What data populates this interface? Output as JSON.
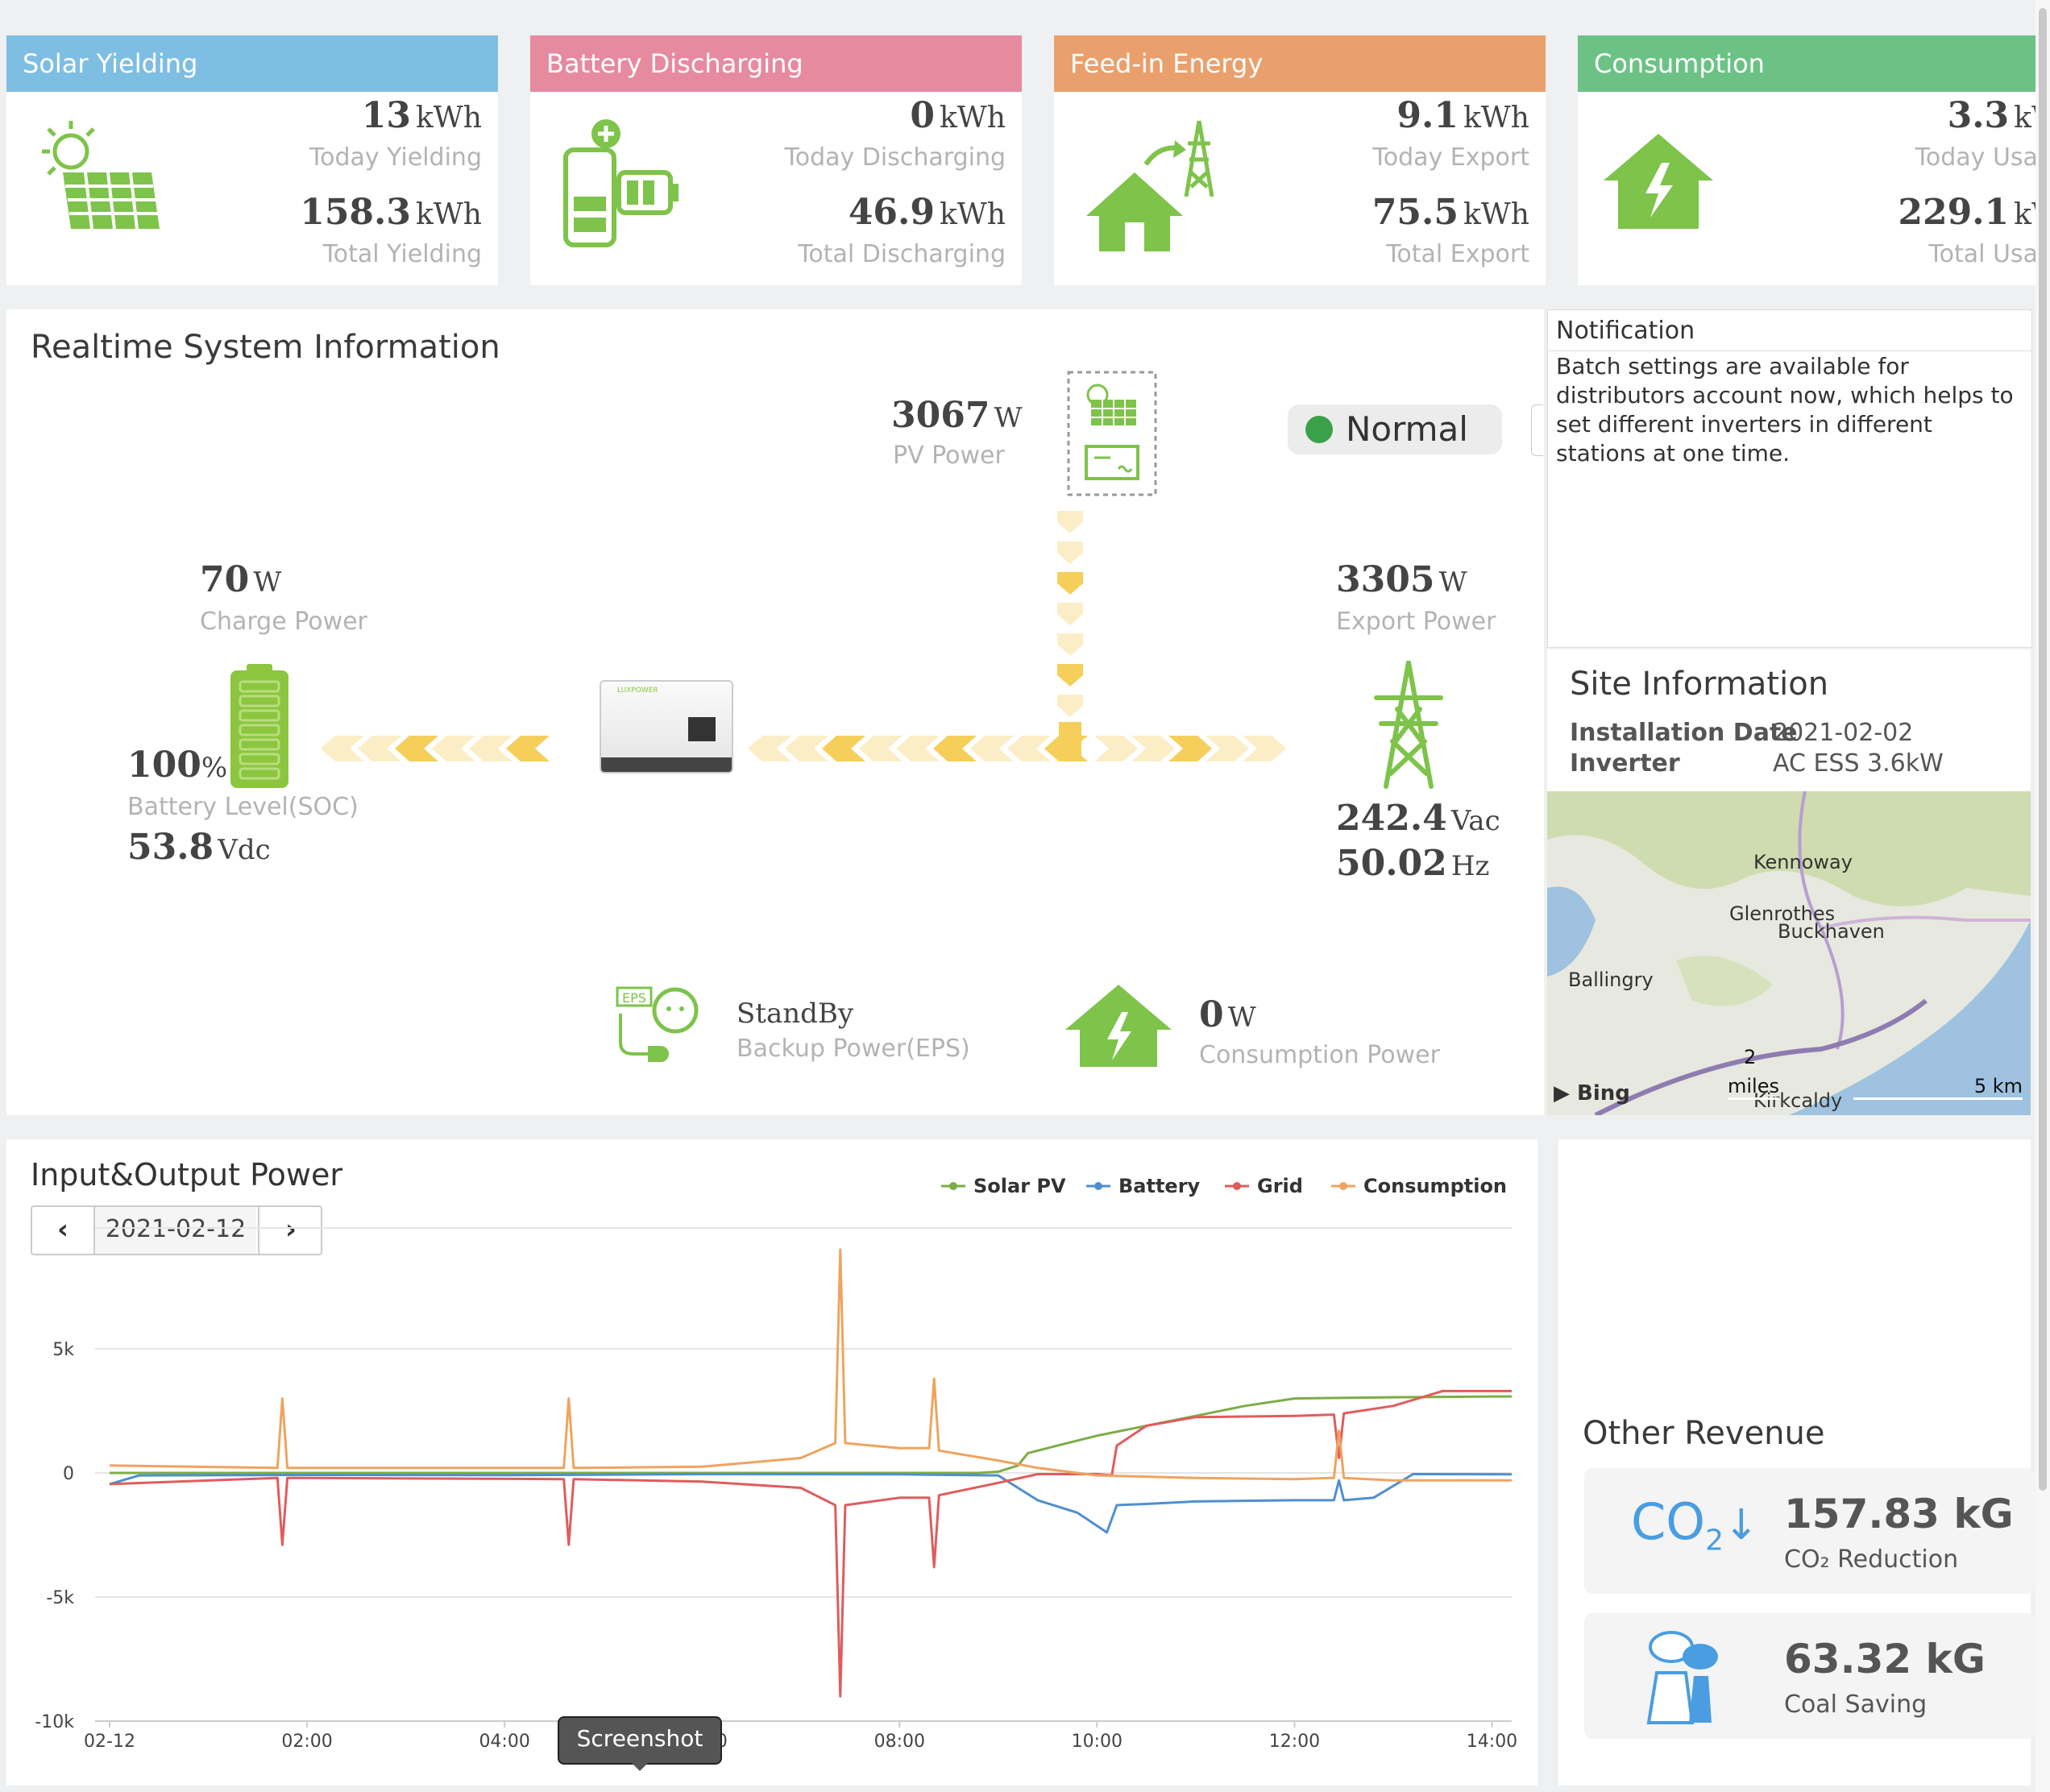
{
  "cards": [
    {
      "title": "Solar Yielding",
      "color": "#7fbee3",
      "today_value": "13",
      "today_unit": "kWh",
      "today_label": "Today Yielding",
      "total_value": "158.3",
      "total_unit": "kWh",
      "total_label": "Total Yielding",
      "icon": "solar-panel-icon"
    },
    {
      "title": "Battery Discharging",
      "color": "#e68aa0",
      "today_value": "0",
      "today_unit": "kWh",
      "today_label": "Today Discharging",
      "total_value": "46.9",
      "total_unit": "kWh",
      "total_label": "Total Discharging",
      "icon": "battery-icon"
    },
    {
      "title": "Feed-in Energy",
      "color": "#e9a06c",
      "today_value": "9.1",
      "today_unit": "kWh",
      "today_label": "Today Export",
      "total_value": "75.5",
      "total_unit": "kWh",
      "total_label": "Total Export",
      "icon": "house-grid-icon"
    },
    {
      "title": "Consumption",
      "color": "#6cc285",
      "today_value": "3.3",
      "today_unit": "kW",
      "today_label": "Today Usag",
      "total_value": "229.1",
      "total_unit": "kW",
      "total_label": "Total Usag",
      "icon": "house-bolt-icon"
    }
  ],
  "realtime": {
    "title": "Realtime System Information",
    "status": "Normal",
    "status_color": "#3aa14a",
    "pv_power": "3067",
    "pv_power_unit": "W",
    "pv_power_label": "PV Power",
    "charge_power": "70",
    "charge_power_unit": "W",
    "charge_power_label": "Charge Power",
    "soc": "100",
    "soc_unit": "%",
    "soc_label": "Battery Level(SOC)",
    "battery_voltage": "53.8",
    "battery_voltage_unit": "Vdc",
    "export_power": "3305",
    "export_power_unit": "W",
    "export_power_label": "Export Power",
    "grid_voltage": "242.4",
    "grid_voltage_unit": "Vac",
    "grid_freq": "50.02",
    "grid_freq_unit": "Hz",
    "eps_status": "StandBy",
    "eps_label": "Backup Power(EPS)",
    "consumption_power": "0",
    "consumption_power_unit": "W",
    "consumption_label": "Consumption Power",
    "inverter_brand": "LUXPOWER",
    "eps_tag": "EPS"
  },
  "notification": {
    "title": "Notification",
    "text": "Batch settings are available for distributors account now, which helps to set different inverters in different stations at one time."
  },
  "site": {
    "title": "Site Information",
    "install_label": "Installation Date",
    "install_value": "2021-02-02",
    "inverter_label": "Inverter",
    "inverter_value": "AC ESS 3.6kW",
    "map": {
      "places": [
        "Kennoway",
        "Glenrothes",
        "Buckhaven",
        "Ballingry",
        "Kirkcaldy"
      ],
      "scale_miles_value": "2",
      "scale_miles_unit": "miles",
      "scale_km": "5 km",
      "provider": "Bing"
    }
  },
  "chart_panel": {
    "title": "Input&Output Power",
    "date": "2021-02-12",
    "tooltip": "Screenshot"
  },
  "chart_data": {
    "type": "line",
    "x_ticks": [
      "02-12",
      "02:00",
      "04:00",
      "06:00",
      "08:00",
      "10:00",
      "12:00",
      "14:00"
    ],
    "y_ticks": [
      "5k",
      "0",
      "-5k",
      "-10k"
    ],
    "ylim": [
      -10000,
      10000
    ],
    "xlim_hours": [
      0,
      14.2
    ],
    "legend_position": "top-right",
    "series": [
      {
        "name": "Solar PV",
        "color": "#7cad46",
        "points": [
          [
            0,
            0
          ],
          [
            8.8,
            0
          ],
          [
            9.0,
            50
          ],
          [
            9.2,
            300
          ],
          [
            9.3,
            800
          ],
          [
            9.6,
            1100
          ],
          [
            10.0,
            1500
          ],
          [
            10.5,
            1900
          ],
          [
            11.0,
            2300
          ],
          [
            11.5,
            2700
          ],
          [
            12.0,
            3000
          ],
          [
            13.0,
            3050
          ],
          [
            14.0,
            3080
          ],
          [
            14.2,
            3080
          ]
        ]
      },
      {
        "name": "Battery",
        "color": "#4f8fcf",
        "points": [
          [
            0,
            -450
          ],
          [
            0.3,
            -100
          ],
          [
            2.0,
            -80
          ],
          [
            4.0,
            -90
          ],
          [
            6.0,
            -50
          ],
          [
            8.0,
            -60
          ],
          [
            9.0,
            -100
          ],
          [
            9.4,
            -1100
          ],
          [
            9.8,
            -1600
          ],
          [
            10.1,
            -2400
          ],
          [
            10.2,
            -1300
          ],
          [
            10.5,
            -1250
          ],
          [
            11.0,
            -1150
          ],
          [
            12.0,
            -1100
          ],
          [
            12.4,
            -1100
          ],
          [
            12.45,
            -300
          ],
          [
            12.5,
            -1100
          ],
          [
            12.8,
            -1000
          ],
          [
            13.2,
            -50
          ],
          [
            14.2,
            -60
          ]
        ]
      },
      {
        "name": "Grid",
        "color": "#e05c5c",
        "points": [
          [
            0,
            -450
          ],
          [
            1.7,
            -200
          ],
          [
            1.75,
            -2900
          ],
          [
            1.8,
            -200
          ],
          [
            4.6,
            -250
          ],
          [
            4.65,
            -2900
          ],
          [
            4.7,
            -250
          ],
          [
            6.0,
            -350
          ],
          [
            7.0,
            -600
          ],
          [
            7.35,
            -1300
          ],
          [
            7.4,
            -9000
          ],
          [
            7.45,
            -1300
          ],
          [
            8.0,
            -1000
          ],
          [
            8.3,
            -1000
          ],
          [
            8.35,
            -3800
          ],
          [
            8.4,
            -900
          ],
          [
            9.0,
            -400
          ],
          [
            9.4,
            -50
          ],
          [
            10.0,
            -50
          ],
          [
            10.15,
            -100
          ],
          [
            10.2,
            1100
          ],
          [
            10.5,
            1900
          ],
          [
            11.0,
            2250
          ],
          [
            12.0,
            2300
          ],
          [
            12.4,
            2350
          ],
          [
            12.45,
            600
          ],
          [
            12.5,
            2400
          ],
          [
            13.0,
            2700
          ],
          [
            13.5,
            3300
          ],
          [
            14.2,
            3300
          ]
        ]
      },
      {
        "name": "Consumption",
        "color": "#f0a35e",
        "points": [
          [
            0,
            300
          ],
          [
            1.7,
            200
          ],
          [
            1.75,
            3000
          ],
          [
            1.8,
            200
          ],
          [
            4.6,
            200
          ],
          [
            4.65,
            3000
          ],
          [
            4.7,
            200
          ],
          [
            6.0,
            250
          ],
          [
            7.0,
            600
          ],
          [
            7.35,
            1200
          ],
          [
            7.4,
            9000
          ],
          [
            7.45,
            1200
          ],
          [
            8.0,
            1000
          ],
          [
            8.3,
            1000
          ],
          [
            8.35,
            3800
          ],
          [
            8.4,
            900
          ],
          [
            9.0,
            500
          ],
          [
            9.4,
            200
          ],
          [
            10.0,
            -100
          ],
          [
            11.0,
            -200
          ],
          [
            12.0,
            -250
          ],
          [
            12.4,
            -200
          ],
          [
            12.45,
            1700
          ],
          [
            12.5,
            -200
          ],
          [
            13.0,
            -300
          ],
          [
            14.2,
            -300
          ]
        ]
      }
    ]
  },
  "revenue": {
    "title": "Other Revenue",
    "co2_value": "157.83 kG",
    "co2_label": "CO₂ Reduction",
    "co2_symbol": "CO",
    "coal_value": "63.32 kG",
    "coal_label": "Coal Saving"
  }
}
